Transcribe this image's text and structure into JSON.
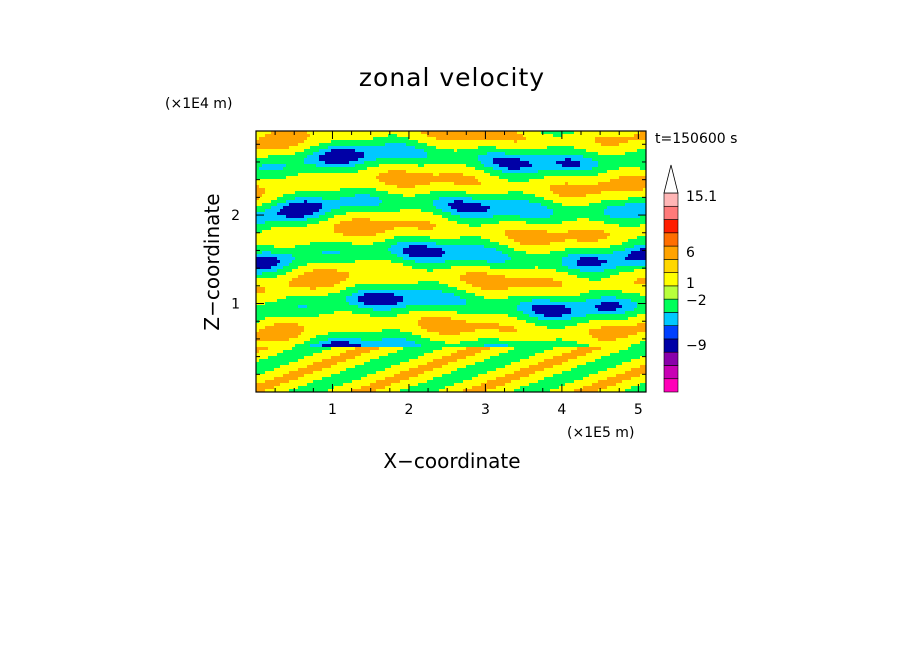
{
  "chart_data": {
    "type": "heatmap",
    "title": "zonal velocity",
    "xlabel": "X−coordinate",
    "ylabel": "Z−coordinate",
    "x_scale_note": "(×1E5 m)",
    "y_scale_note": "(×1E4 m)",
    "time_label": "t=150600 s",
    "xlim": [
      0,
      5.1
    ],
    "ylim": [
      0,
      2.95
    ],
    "x_ticks": [
      1,
      2,
      3,
      4,
      5
    ],
    "x_tick_labels": [
      "1",
      "2",
      "3",
      "4",
      "5"
    ],
    "y_ticks": [
      1,
      2
    ],
    "y_tick_labels": [
      "1",
      "2"
    ],
    "colorbar": {
      "colors": [
        "#ff00b8",
        "#c800b4",
        "#8a00aa",
        "#0000a6",
        "#0040ff",
        "#00c8ff",
        "#00ff5a",
        "#b8ff3c",
        "#ffff00",
        "#ffd700",
        "#ffa300",
        "#ff6e00",
        "#ff1e00",
        "#ff7a7a",
        "#ffb6b6",
        "#ffffff"
      ],
      "labels": [
        "15.1",
        "6",
        "1",
        "−2",
        "−9"
      ],
      "label_values": [
        15.1,
        6,
        1,
        -2,
        -9
      ]
    },
    "field_palette": {
      "strong_neg": "#0000a6",
      "neg": "#00c8ff",
      "zero": "#00ff5a",
      "pos": "#ffff00",
      "strong_pos": "#ffa300"
    }
  }
}
